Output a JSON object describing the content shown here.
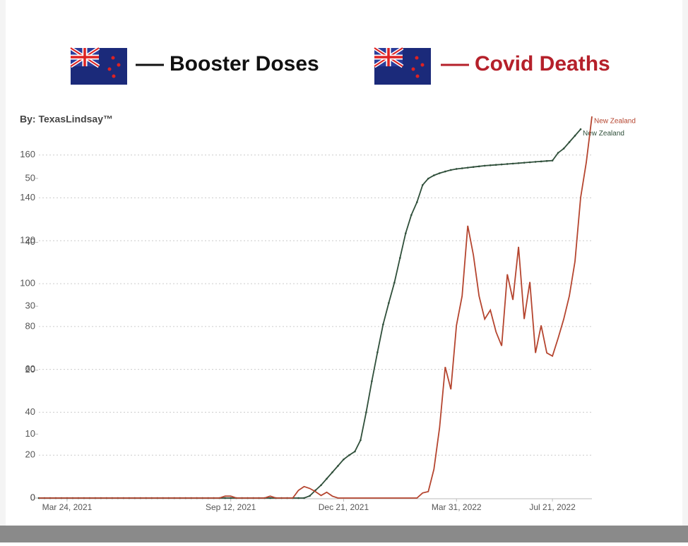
{
  "chart_data": {
    "type": "line",
    "annotations": [
      "Booster Doses",
      "Covid Deaths"
    ],
    "byline": "By: TexasLindsay™",
    "categories": [
      null,
      null,
      null,
      null,
      null,
      "Mar 24, 2021",
      null,
      null,
      null,
      null,
      null,
      null,
      null,
      null,
      null,
      null,
      null,
      null,
      null,
      null,
      null,
      null,
      null,
      null,
      null,
      null,
      null,
      null,
      null,
      null,
      null,
      null,
      null,
      null,
      "Sep 12, 2021",
      null,
      null,
      null,
      null,
      null,
      null,
      null,
      null,
      null,
      null,
      null,
      null,
      null,
      null,
      null,
      null,
      null,
      null,
      null,
      "Dec 21, 2021",
      null,
      null,
      null,
      null,
      null,
      null,
      null,
      null,
      null,
      null,
      null,
      null,
      null,
      null,
      null,
      null,
      null,
      null,
      null,
      "Mar 31, 2022",
      null,
      null,
      null,
      null,
      null,
      null,
      null,
      null,
      null,
      null,
      null,
      null,
      null,
      null,
      null,
      null,
      "Jul 21, 2022",
      null,
      null,
      null,
      null,
      null,
      null,
      null
    ],
    "series": [
      {
        "name": "New Zealand",
        "color": "#2f4f3a",
        "axis": "y",
        "values": [
          0,
          0,
          0,
          0,
          0,
          0,
          0,
          0,
          0,
          0,
          0,
          0,
          0,
          0,
          0,
          0,
          0,
          0,
          0,
          0,
          0,
          0,
          0,
          0,
          0,
          0,
          0,
          0,
          0,
          0,
          0,
          0,
          0,
          0,
          0,
          0,
          0,
          0,
          0,
          0,
          0,
          0,
          0,
          0,
          0,
          0,
          0,
          0,
          1,
          3.6,
          6,
          9,
          12,
          15,
          18,
          20,
          21.7,
          27,
          40,
          54.5,
          68,
          81,
          91,
          100.5,
          112,
          123.5,
          132,
          138,
          146,
          149,
          150.5,
          151.5,
          152.3,
          153,
          153.5,
          153.8,
          154.1,
          154.4,
          154.7,
          155,
          155.2,
          155.4,
          155.6,
          155.8,
          156,
          156.2,
          156.4,
          156.6,
          156.8,
          157,
          157.2,
          157.4,
          161,
          163,
          166,
          169,
          172,
          null,
          null
        ]
      },
      {
        "name": "New Zealand",
        "color": "#b5452f",
        "axis": "y2",
        "values": [
          0,
          0,
          0,
          0,
          0,
          0,
          0,
          0,
          0,
          0,
          0,
          0,
          0,
          0,
          0,
          0,
          0,
          0,
          0,
          0,
          0,
          0,
          0,
          0,
          0,
          0,
          0,
          0,
          0,
          0,
          0,
          0,
          0,
          0.3,
          0.3,
          0,
          0,
          0,
          0,
          0,
          0,
          0.3,
          0,
          0,
          0,
          0,
          1.2,
          1.8,
          1.5,
          1,
          0.4,
          0.9,
          0.3,
          0,
          0,
          0,
          0,
          0,
          0,
          0,
          0,
          0,
          0,
          0,
          0,
          0,
          0,
          0,
          0.8,
          1,
          4.5,
          11,
          20.5,
          17,
          27,
          31.6,
          42.6,
          38,
          31.6,
          28,
          29.4,
          26,
          23.8,
          35,
          31,
          39.3,
          28,
          33.8,
          22.7,
          27,
          22.7,
          22.2,
          25,
          28,
          31.6,
          37,
          47,
          52.5,
          59.7
        ]
      }
    ],
    "ylim": [
      0,
      178
    ],
    "yticks": [
      0,
      20,
      40,
      60,
      80,
      100,
      120,
      140,
      160
    ],
    "y2lim": [
      0,
      59.7
    ],
    "y2ticks": [
      0,
      10,
      20,
      30,
      40,
      50
    ],
    "grid": true
  }
}
